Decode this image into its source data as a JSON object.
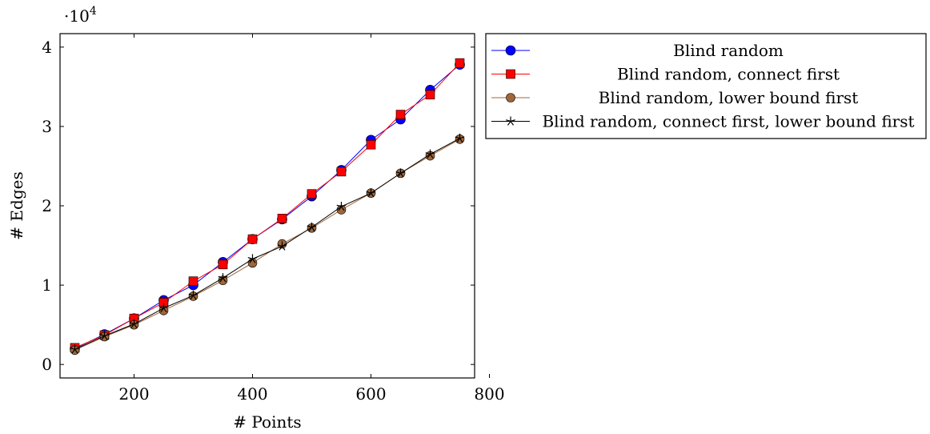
{
  "chart_data": {
    "type": "line",
    "xlabel": "# Points",
    "ylabel": "# Edges",
    "y_scale_label": "·10",
    "y_scale_exponent": "4",
    "xlim": [
      75,
      775
    ],
    "ylim": [
      -0.17,
      4.17
    ],
    "x_ticks": [
      200,
      400,
      600,
      800
    ],
    "y_ticks": [
      0,
      1,
      2,
      3,
      4
    ],
    "x_tick_labels": [
      "200",
      "400",
      "600",
      "800"
    ],
    "y_tick_labels": [
      "0",
      "1",
      "2",
      "3",
      "4"
    ],
    "legend_position": "outside-right-top",
    "x": [
      100,
      150,
      200,
      250,
      300,
      350,
      400,
      450,
      500,
      550,
      600,
      650,
      700,
      750
    ],
    "series": [
      {
        "name": "Blind random",
        "color": "#0000ff",
        "marker": "circle",
        "values": [
          0.2,
          0.38,
          0.58,
          0.81,
          1.0,
          1.29,
          1.58,
          1.83,
          2.12,
          2.45,
          2.83,
          3.09,
          3.46,
          3.78
        ]
      },
      {
        "name": "Blind random, connect first",
        "color": "#ff0000",
        "marker": "square",
        "values": [
          0.21,
          0.37,
          0.58,
          0.78,
          1.05,
          1.26,
          1.58,
          1.84,
          2.15,
          2.43,
          2.77,
          3.15,
          3.4,
          3.8
        ]
      },
      {
        "name": "Blind random, lower bound first",
        "color": "#a0673a",
        "marker": "circle",
        "values": [
          0.18,
          0.35,
          0.5,
          0.68,
          0.86,
          1.06,
          1.28,
          1.52,
          1.72,
          1.95,
          2.16,
          2.41,
          2.63,
          2.84
        ]
      },
      {
        "name": "Blind random, connect first, lower bound first",
        "color": "#000000",
        "marker": "star",
        "values": [
          0.19,
          0.36,
          0.51,
          0.71,
          0.87,
          1.09,
          1.33,
          1.49,
          1.73,
          1.99,
          2.16,
          2.41,
          2.65,
          2.85
        ]
      }
    ]
  }
}
